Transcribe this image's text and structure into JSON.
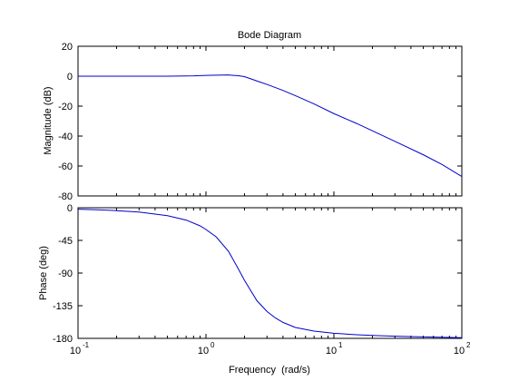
{
  "chart_data": [
    {
      "type": "line",
      "title": "Bode Diagram",
      "ylabel": "Magnitude (dB)",
      "xlabel": "",
      "xscale": "log",
      "xlim": [
        0.1,
        100
      ],
      "ylim": [
        -80,
        20
      ],
      "y_ticks": [
        20,
        0,
        -20,
        -40,
        -60,
        -80
      ],
      "series": [
        {
          "color": "#0000cc",
          "x": [
            0.1,
            0.2,
            0.5,
            0.8,
            1.0,
            1.2,
            1.5,
            1.8,
            2.0,
            2.2,
            2.5,
            3.0,
            4.0,
            5.0,
            7.0,
            10.0,
            15.0,
            20.0,
            30.0,
            50.0,
            70.0,
            100.0
          ],
          "y": [
            0.0,
            0.0,
            0.0,
            0.2,
            0.5,
            0.7,
            0.8,
            0.3,
            -0.3,
            -1.5,
            -3.2,
            -5.5,
            -9.5,
            -13.0,
            -18.5,
            -25.0,
            -31.5,
            -36.5,
            -43.5,
            -52.5,
            -59.0,
            -67.0
          ]
        }
      ]
    },
    {
      "type": "line",
      "title": "",
      "ylabel": "Phase (deg)",
      "xlabel": "Frequency  (rad/s)",
      "xscale": "log",
      "xlim": [
        0.1,
        100
      ],
      "ylim": [
        -180,
        0
      ],
      "y_ticks": [
        0,
        -45,
        -90,
        -135,
        -180
      ],
      "x_ticks": [
        {
          "value": 0.1,
          "base": "10",
          "exp": "-1"
        },
        {
          "value": 1,
          "base": "10",
          "exp": "0"
        },
        {
          "value": 10,
          "base": "10",
          "exp": "1"
        },
        {
          "value": 100,
          "base": "10",
          "exp": "2"
        }
      ],
      "series": [
        {
          "color": "#0000cc",
          "x": [
            0.1,
            0.15,
            0.2,
            0.3,
            0.5,
            0.7,
            0.9,
            1.0,
            1.2,
            1.5,
            1.8,
            2.0,
            2.2,
            2.5,
            3.0,
            3.5,
            4.0,
            5.0,
            7.0,
            10.0,
            15.0,
            20.0,
            30.0,
            50.0,
            100.0
          ],
          "y": [
            -2,
            -3,
            -4,
            -6,
            -11,
            -17,
            -25,
            -30,
            -40,
            -60,
            -85,
            -100,
            -112,
            -128,
            -143,
            -152,
            -158,
            -165,
            -170,
            -173,
            -175,
            -176,
            -177,
            -178,
            -179
          ]
        }
      ]
    }
  ]
}
